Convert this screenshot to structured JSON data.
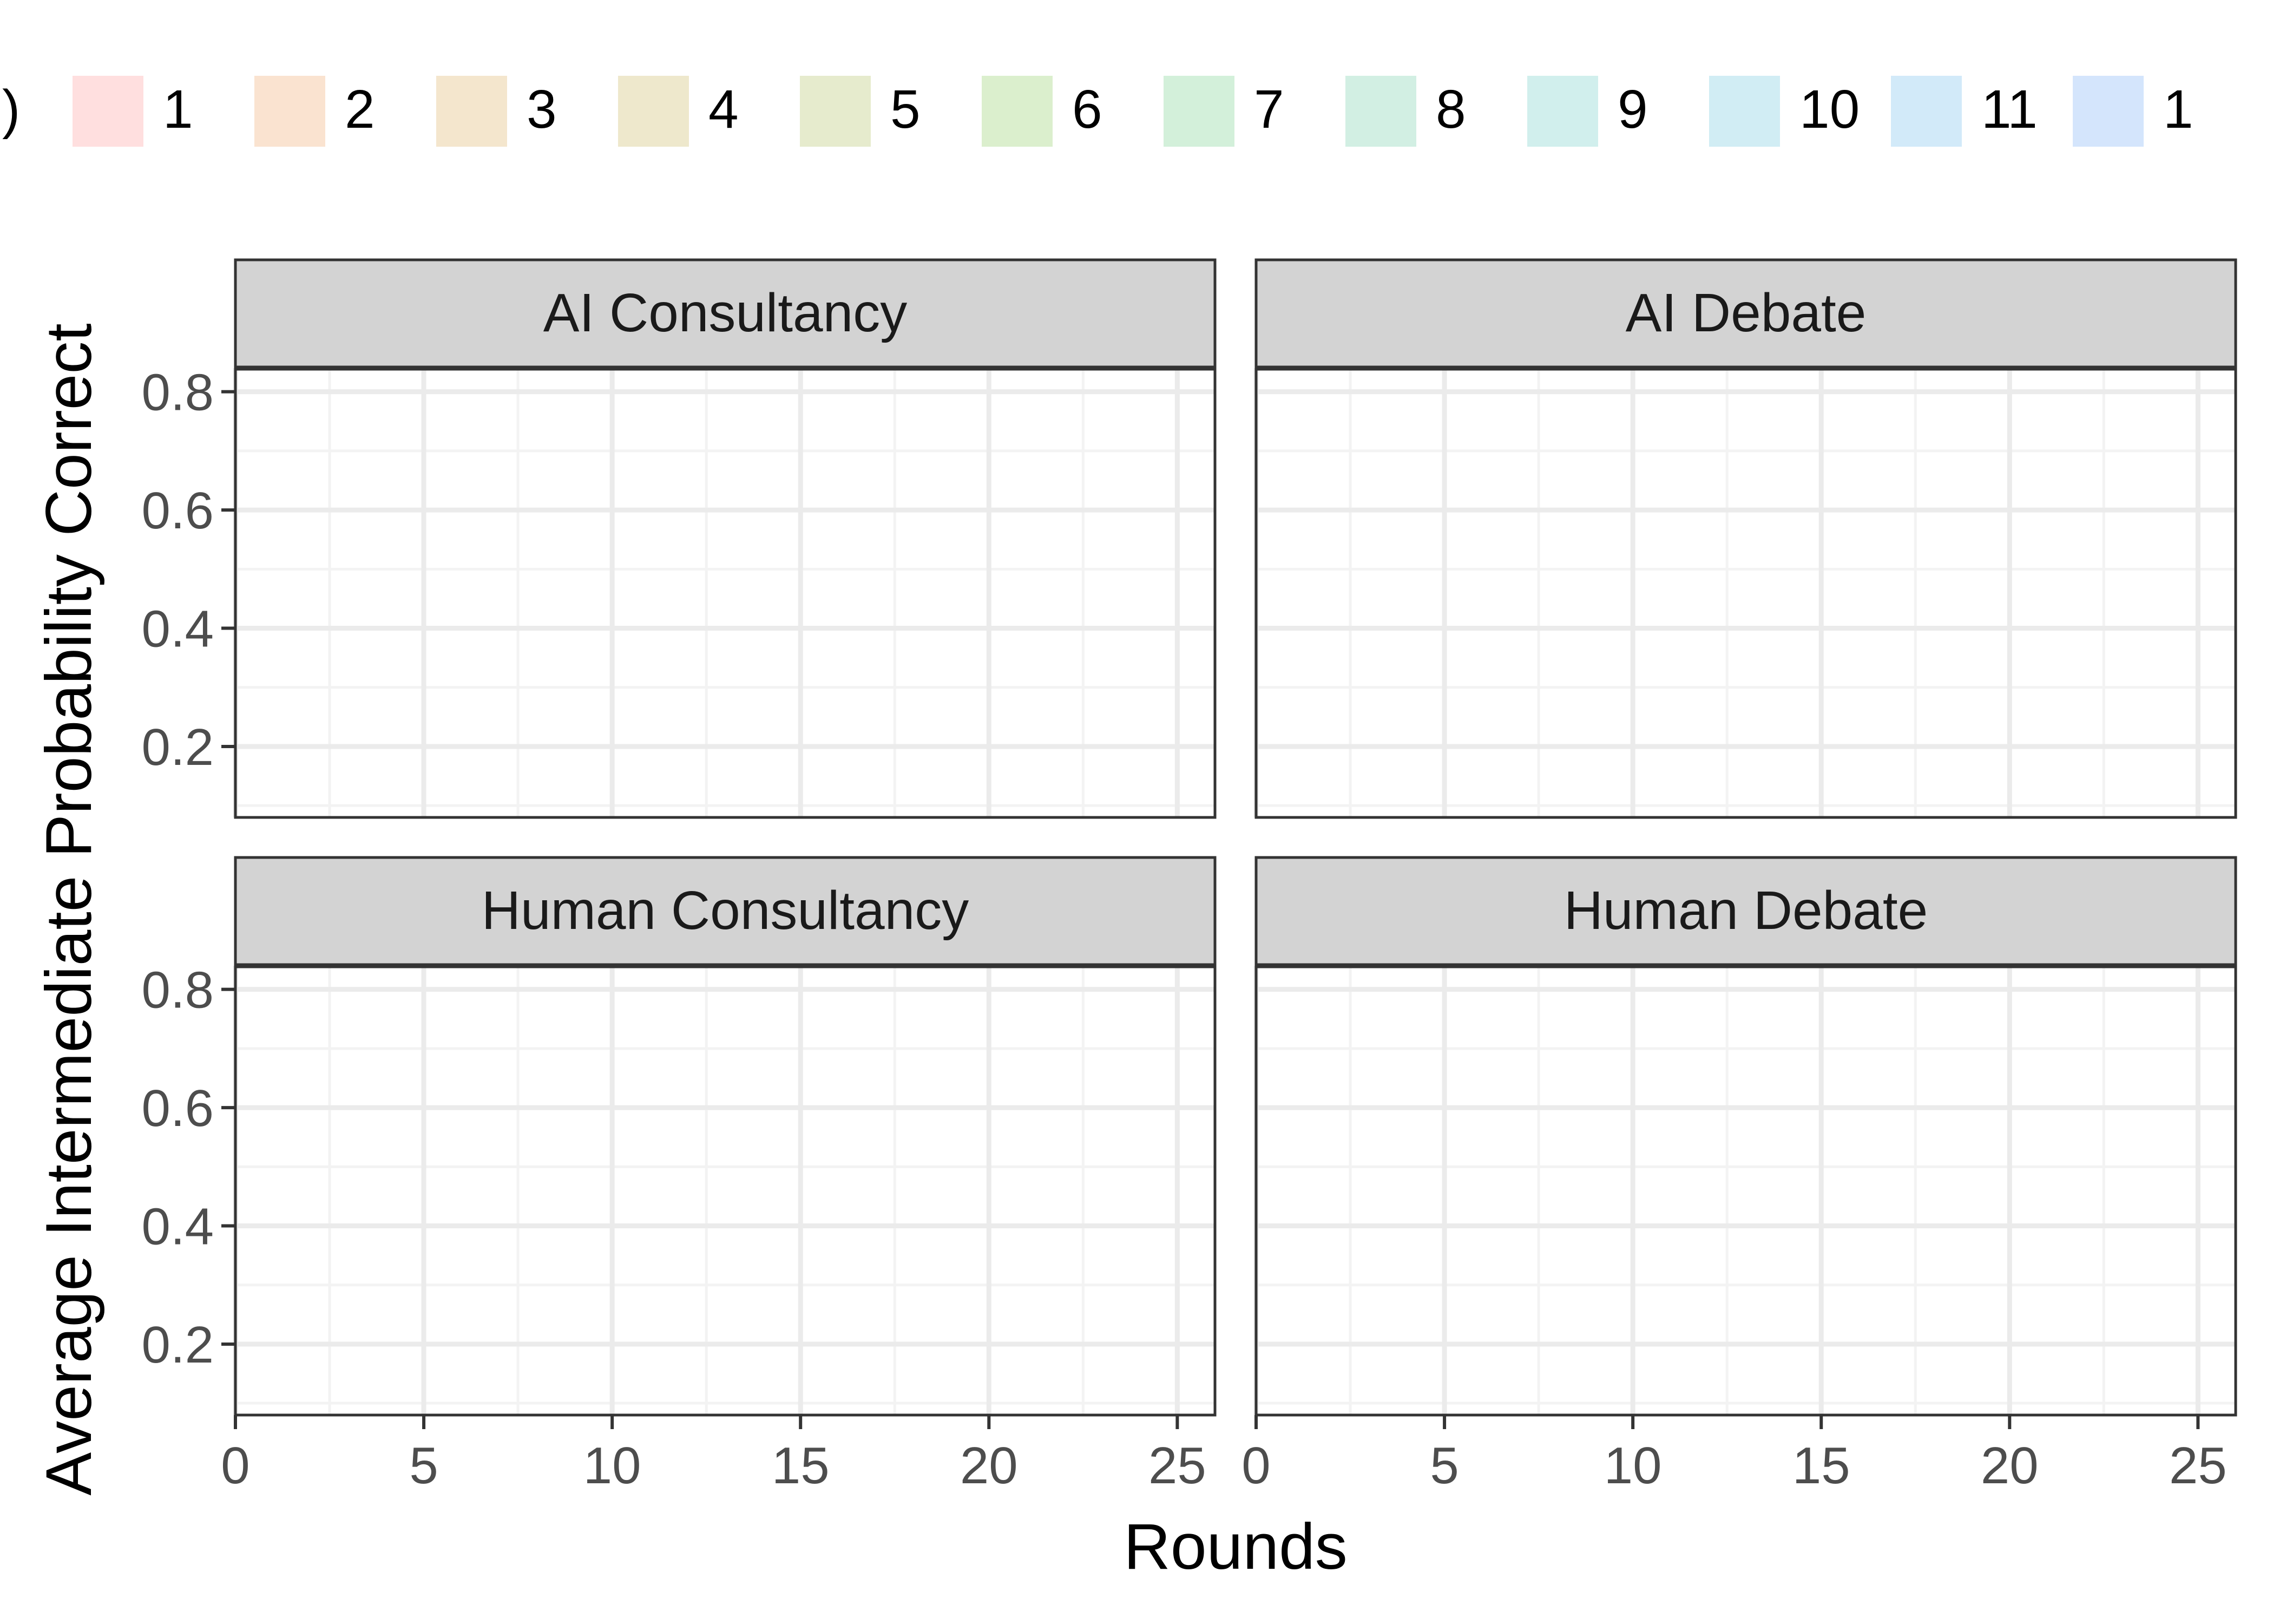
{
  "chart_data": {
    "type": "line",
    "layout": "faceted 2x2",
    "xlabel": "Rounds",
    "ylabel": "Average Intermediate Probability Correct",
    "xlim": [
      0,
      26
    ],
    "ylim": [
      0.08,
      0.84
    ],
    "x_ticks": [
      0,
      5,
      10,
      15,
      20,
      25
    ],
    "x_tick_labels": [
      "0",
      "5",
      "10",
      "15",
      "20",
      "25"
    ],
    "y_ticks": [
      0.2,
      0.4,
      0.6,
      0.8
    ],
    "y_tick_labels": [
      "0.2",
      "0.4",
      "0.6",
      "0.8"
    ],
    "grid": true,
    "legend_position": "top",
    "legend": {
      "title_fragment": ")",
      "entries": [
        {
          "label": "1",
          "color": "#ffdfdf"
        },
        {
          "label": "2",
          "color": "#fae3d0"
        },
        {
          "label": "3",
          "color": "#f4e6cd"
        },
        {
          "label": "4",
          "color": "#eee8cc"
        },
        {
          "label": "5",
          "color": "#e6ebcd"
        },
        {
          "label": "6",
          "color": "#dbefcd"
        },
        {
          "label": "7",
          "color": "#d3f0da"
        },
        {
          "label": "8",
          "color": "#d2efe3"
        },
        {
          "label": "9",
          "color": "#d1efed"
        },
        {
          "label": "10",
          "color": "#d1edf4"
        },
        {
          "label": "11",
          "color": "#d2eaf9"
        },
        {
          "label": "1",
          "color": "#d4e5fc"
        }
      ]
    },
    "facets": [
      {
        "title": "AI Consultancy",
        "series": []
      },
      {
        "title": "AI Debate",
        "series": []
      },
      {
        "title": "Human Consultancy",
        "series": []
      },
      {
        "title": "Human Debate",
        "series": []
      }
    ],
    "colors": {
      "strip_fill": "#d3d3d3",
      "panel_border": "#333333",
      "grid_major": "#ebebeb",
      "grid_minor": "#f3f3f3",
      "tick_text": "#4d4d4d",
      "axis_title_text": "#000000"
    }
  }
}
